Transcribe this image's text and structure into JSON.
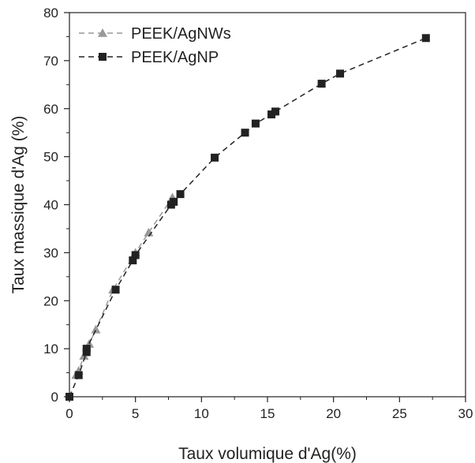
{
  "chart_data": {
    "type": "scatter",
    "xlabel": "Taux volumique d'Ag(%)",
    "ylabel": "Taux massique d'Ag (%)",
    "xlim": [
      0,
      30
    ],
    "ylim": [
      0,
      80
    ],
    "xticks": [
      0,
      5,
      10,
      15,
      20,
      25,
      30
    ],
    "yticks": [
      0,
      10,
      20,
      30,
      40,
      50,
      60,
      70,
      80
    ],
    "x_tick_labels": [
      "0",
      "5",
      "10",
      "15",
      "20",
      "25",
      "30"
    ],
    "y_tick_labels": [
      "0",
      "10",
      "20",
      "30",
      "40",
      "50",
      "60",
      "70",
      "80"
    ],
    "grid": false,
    "legend_position": "top-left",
    "series": [
      {
        "name": "PEEK/AgNWs",
        "marker": "triangle",
        "color": "#999999",
        "line": "dashed",
        "x": [
          0.5,
          0.7,
          1.1,
          1.5,
          2.0,
          3.3,
          5.0,
          6.0,
          7.8
        ],
        "y": [
          4.5,
          5.4,
          8.5,
          11.0,
          14.0,
          22.3,
          30.0,
          34.2,
          41.5
        ]
      },
      {
        "name": "PEEK/AgNP",
        "marker": "square",
        "color": "#222222",
        "line": "dashed",
        "x": [
          0.0,
          0.7,
          1.3,
          1.3,
          3.5,
          4.8,
          5.0,
          7.7,
          7.9,
          8.4,
          11.0,
          13.3,
          14.1,
          15.3,
          15.6,
          19.1,
          20.5,
          27.0
        ],
        "y": [
          0.0,
          4.5,
          9.3,
          10.0,
          22.3,
          28.4,
          29.5,
          40.0,
          40.6,
          42.2,
          49.8,
          55.0,
          56.9,
          58.8,
          59.4,
          65.2,
          67.3,
          74.7
        ]
      }
    ]
  }
}
